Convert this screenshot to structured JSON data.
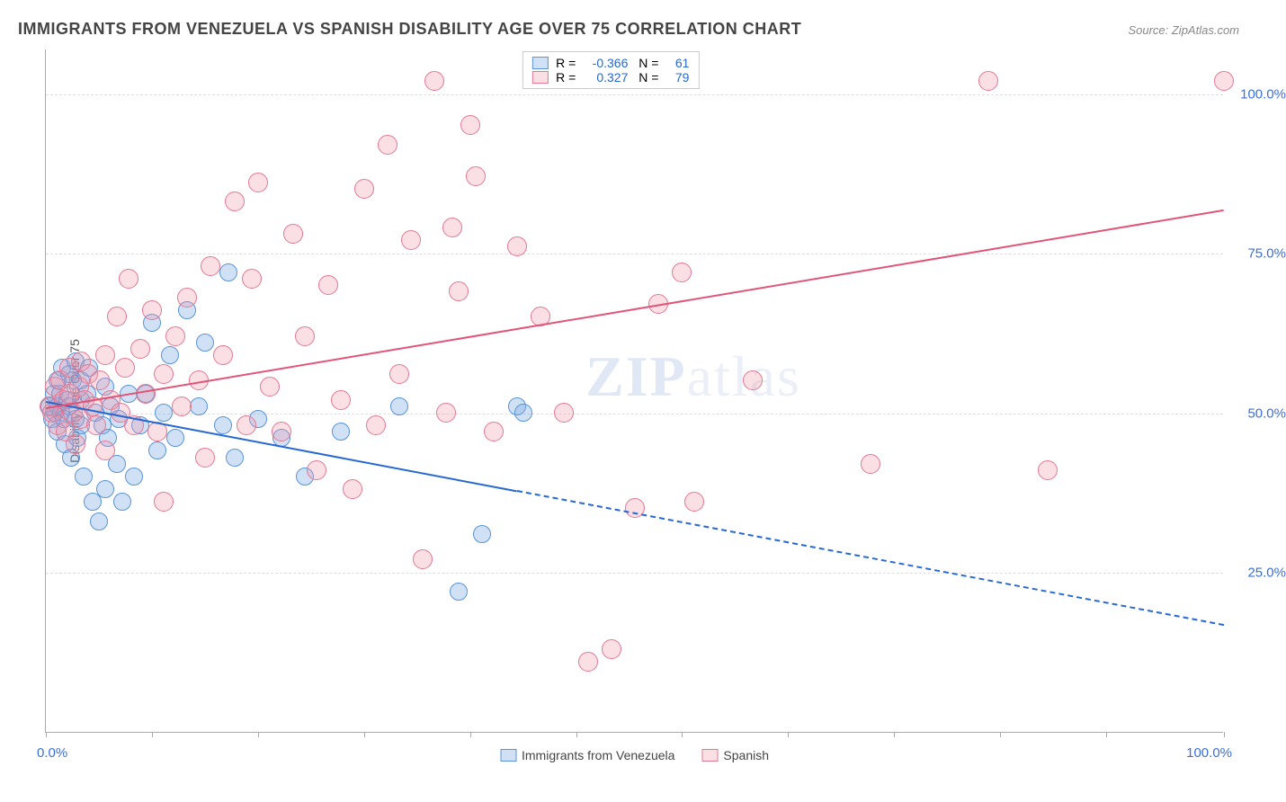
{
  "title": "IMMIGRANTS FROM VENEZUELA VS SPANISH DISABILITY AGE OVER 75 CORRELATION CHART",
  "source": "Source: ZipAtlas.com",
  "ylabel": "Disability Age Over 75",
  "watermark_zip": "ZIP",
  "watermark_atlas": "atlas",
  "chart": {
    "type": "scatter",
    "xlim": [
      0,
      100
    ],
    "ylim": [
      0,
      107
    ],
    "xtick_positions": [
      0,
      9,
      18,
      27,
      36,
      45,
      54,
      63,
      72,
      81,
      90,
      100
    ],
    "xtick_labels": {
      "left": "0.0%",
      "right": "100.0%"
    },
    "yticks": [
      {
        "pos": 25,
        "label": "25.0%"
      },
      {
        "pos": 50,
        "label": "50.0%"
      },
      {
        "pos": 75,
        "label": "75.0%"
      },
      {
        "pos": 100,
        "label": "100.0%"
      }
    ],
    "grid_y": [
      25,
      50,
      75,
      100
    ],
    "background_color": "#ffffff",
    "grid_color": "#dddddd",
    "axis_color": "#aaaaaa",
    "tick_label_color": "#3b6fd6",
    "watermark_color": "rgba(120,150,200,0.15)"
  },
  "series": [
    {
      "name": "Immigrants from Venezuela",
      "fill_color": "rgba(120,170,230,0.35)",
      "stroke_color": "#5a95d8",
      "marker_radius": 10,
      "marker_stroke_width": 1.5,
      "regression": {
        "x1": 0,
        "y1": 52,
        "x2": 100,
        "y2": 17,
        "solid_until_x": 40,
        "color": "#2768d1",
        "width": 2
      },
      "legend_stats": {
        "R": "-0.366",
        "N": "61"
      },
      "points": [
        [
          0.3,
          51
        ],
        [
          0.5,
          49
        ],
        [
          0.7,
          53
        ],
        [
          0.8,
          50
        ],
        [
          1.0,
          51
        ],
        [
          1.0,
          55
        ],
        [
          1.0,
          47
        ],
        [
          1.2,
          53
        ],
        [
          1.3,
          50
        ],
        [
          1.4,
          57
        ],
        [
          1.5,
          49
        ],
        [
          1.6,
          45
        ],
        [
          1.8,
          52
        ],
        [
          2.0,
          51
        ],
        [
          2.0,
          56
        ],
        [
          2.1,
          43
        ],
        [
          2.3,
          55
        ],
        [
          2.5,
          49
        ],
        [
          2.5,
          58
        ],
        [
          2.7,
          46
        ],
        [
          3.0,
          52
        ],
        [
          3.0,
          48
        ],
        [
          3.0,
          55
        ],
        [
          3.2,
          40
        ],
        [
          3.5,
          53
        ],
        [
          3.7,
          57
        ],
        [
          4.0,
          36
        ],
        [
          4.2,
          50
        ],
        [
          4.5,
          33
        ],
        [
          4.8,
          48
        ],
        [
          5.0,
          54
        ],
        [
          5.0,
          38
        ],
        [
          5.3,
          46
        ],
        [
          5.5,
          51
        ],
        [
          6.0,
          42
        ],
        [
          6.2,
          49
        ],
        [
          6.5,
          36
        ],
        [
          7.0,
          53
        ],
        [
          7.5,
          40
        ],
        [
          8.0,
          48
        ],
        [
          8.5,
          53
        ],
        [
          9.0,
          64
        ],
        [
          9.5,
          44
        ],
        [
          10.0,
          50
        ],
        [
          10.5,
          59
        ],
        [
          11.0,
          46
        ],
        [
          12.0,
          66
        ],
        [
          13.0,
          51
        ],
        [
          13.5,
          61
        ],
        [
          15.0,
          48
        ],
        [
          15.5,
          72
        ],
        [
          16.0,
          43
        ],
        [
          18.0,
          49
        ],
        [
          20.0,
          46
        ],
        [
          22.0,
          40
        ],
        [
          25.0,
          47
        ],
        [
          30.0,
          51
        ],
        [
          35.0,
          22
        ],
        [
          37.0,
          31
        ],
        [
          40.0,
          51
        ],
        [
          40.5,
          50
        ]
      ]
    },
    {
      "name": "Spanish",
      "fill_color": "rgba(240,150,170,0.30)",
      "stroke_color": "#e47893",
      "marker_radius": 11,
      "marker_stroke_width": 1.5,
      "regression": {
        "x1": 0,
        "y1": 51,
        "x2": 100,
        "y2": 82,
        "solid_until_x": 100,
        "color": "#e05578",
        "width": 2
      },
      "legend_stats": {
        "R": "0.327",
        "N": "79"
      },
      "points": [
        [
          0.3,
          51
        ],
        [
          0.5,
          50
        ],
        [
          0.8,
          54
        ],
        [
          1.0,
          48
        ],
        [
          1.2,
          55
        ],
        [
          1.5,
          52
        ],
        [
          1.7,
          47
        ],
        [
          2.0,
          53
        ],
        [
          2.0,
          57
        ],
        [
          2.3,
          50
        ],
        [
          2.5,
          45
        ],
        [
          2.8,
          54
        ],
        [
          3.0,
          58
        ],
        [
          3.0,
          49
        ],
        [
          3.3,
          52
        ],
        [
          3.6,
          56
        ],
        [
          4.0,
          51
        ],
        [
          4.3,
          48
        ],
        [
          4.6,
          55
        ],
        [
          5.0,
          59
        ],
        [
          5.0,
          44
        ],
        [
          5.5,
          52
        ],
        [
          6.0,
          65
        ],
        [
          6.3,
          50
        ],
        [
          6.7,
          57
        ],
        [
          7.0,
          71
        ],
        [
          7.5,
          48
        ],
        [
          8.0,
          60
        ],
        [
          8.5,
          53
        ],
        [
          9.0,
          66
        ],
        [
          9.5,
          47
        ],
        [
          10.0,
          56
        ],
        [
          10.0,
          36
        ],
        [
          11.0,
          62
        ],
        [
          11.5,
          51
        ],
        [
          12.0,
          68
        ],
        [
          13.0,
          55
        ],
        [
          13.5,
          43
        ],
        [
          14.0,
          73
        ],
        [
          15.0,
          59
        ],
        [
          16.0,
          83
        ],
        [
          17.0,
          48
        ],
        [
          17.5,
          71
        ],
        [
          18.0,
          86
        ],
        [
          19.0,
          54
        ],
        [
          20.0,
          47
        ],
        [
          21.0,
          78
        ],
        [
          22.0,
          62
        ],
        [
          23.0,
          41
        ],
        [
          24.0,
          70
        ],
        [
          25.0,
          52
        ],
        [
          26.0,
          38
        ],
        [
          27.0,
          85
        ],
        [
          28.0,
          48
        ],
        [
          29.0,
          92
        ],
        [
          30.0,
          56
        ],
        [
          31.0,
          77
        ],
        [
          32.0,
          27
        ],
        [
          33.0,
          102
        ],
        [
          34.0,
          50
        ],
        [
          35.0,
          69
        ],
        [
          36.0,
          95
        ],
        [
          38.0,
          47
        ],
        [
          40.0,
          76
        ],
        [
          42.0,
          65
        ],
        [
          44.0,
          50
        ],
        [
          46.0,
          11
        ],
        [
          48.0,
          13
        ],
        [
          50.0,
          35
        ],
        [
          52.0,
          67
        ],
        [
          54.0,
          72
        ],
        [
          55.0,
          36
        ],
        [
          60.0,
          55
        ],
        [
          70.0,
          42
        ],
        [
          80.0,
          102
        ],
        [
          85.0,
          41
        ],
        [
          100.0,
          102
        ],
        [
          34.5,
          79
        ],
        [
          36.5,
          87
        ]
      ]
    }
  ]
}
